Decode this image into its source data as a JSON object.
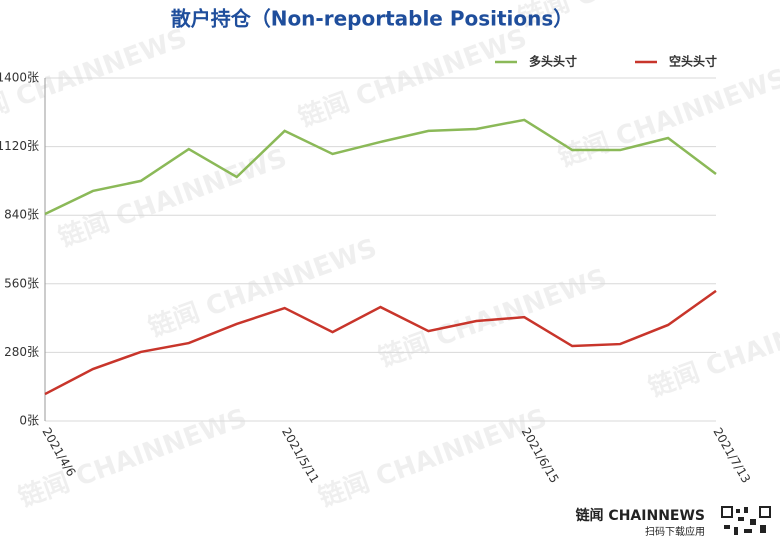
{
  "chart_data": {
    "type": "line",
    "title": "散户持仓（Non-reportable Positions）",
    "categories": [
      "2021/4/6",
      null,
      null,
      null,
      null,
      "2021/5/11",
      null,
      null,
      null,
      null,
      "2021/6/15",
      null,
      null,
      null,
      "2021/7/13"
    ],
    "series": [
      {
        "name": "多头头寸",
        "color": "#8bb958",
        "values": [
          845,
          939,
          980,
          1110,
          996,
          1184,
          1090,
          1139,
          1184,
          1192,
          1229,
          1106,
          1106,
          1155,
          1008
        ]
      },
      {
        "name": "空头头寸",
        "color": "#c8352b",
        "values": [
          110,
          212,
          282,
          318,
          396,
          461,
          363,
          465,
          367,
          408,
          424,
          306,
          314,
          392,
          531
        ]
      }
    ],
    "ylim": [
      0,
      1400
    ],
    "yticks": [
      {
        "value": 0,
        "label": "0张"
      },
      {
        "value": 280,
        "label": "280张"
      },
      {
        "value": 560,
        "label": "560张"
      },
      {
        "value": 840,
        "label": "840张"
      },
      {
        "value": 1120,
        "label": "1120张"
      },
      {
        "value": 1400,
        "label": "1400张"
      }
    ],
    "grid": true,
    "legend": "top-right"
  },
  "watermark": "链闻 CHAINNEWS",
  "footer": {
    "brand": "链闻 CHAINNEWS",
    "caption": "扫码下载应用"
  }
}
